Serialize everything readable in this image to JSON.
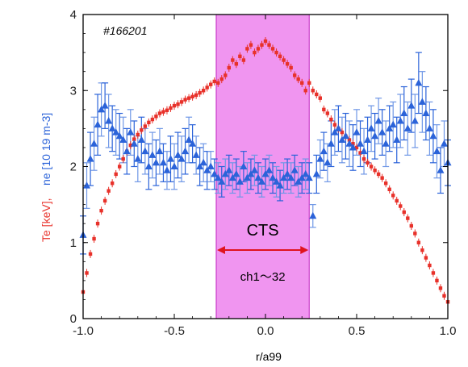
{
  "chart_data": {
    "type": "scatter",
    "shot_label": "#166201",
    "xlabel": "r/a99",
    "ylabel_te": "Te [keV],",
    "ylabel_ne": "ne [10 19 m-3]",
    "xlim": [
      -1.0,
      1.0
    ],
    "ylim": [
      0,
      4
    ],
    "x_ticks": [
      -1.0,
      -0.5,
      0.0,
      0.5,
      1.0
    ],
    "x_tick_labels": [
      "-1.0",
      "-0.5",
      "0.0",
      "0.5",
      "1.0"
    ],
    "y_ticks": [
      0,
      1,
      2,
      3,
      4
    ],
    "y_tick_labels": [
      "0",
      "1",
      "2",
      "3",
      "4"
    ],
    "grid": false,
    "colors": {
      "te": "#e8312a",
      "ne": "#2b63d9",
      "ne_err": "#6f97e6",
      "band": "#f095f0",
      "band_edge": "#c020c0",
      "arrow": "#e0141e"
    },
    "highlight_band": {
      "x_range": [
        -0.27,
        0.24
      ],
      "title": "CTS",
      "subtitle": "ch1～32"
    },
    "series": [
      {
        "name": "Te",
        "marker": "square",
        "x": [
          -1.0,
          -0.98,
          -0.96,
          -0.94,
          -0.92,
          -0.9,
          -0.88,
          -0.86,
          -0.84,
          -0.82,
          -0.8,
          -0.78,
          -0.76,
          -0.74,
          -0.72,
          -0.7,
          -0.68,
          -0.66,
          -0.64,
          -0.62,
          -0.6,
          -0.58,
          -0.56,
          -0.54,
          -0.52,
          -0.5,
          -0.48,
          -0.46,
          -0.44,
          -0.42,
          -0.4,
          -0.38,
          -0.36,
          -0.34,
          -0.32,
          -0.3,
          -0.28,
          -0.26,
          -0.24,
          -0.22,
          -0.2,
          -0.18,
          -0.16,
          -0.14,
          -0.12,
          -0.1,
          -0.08,
          -0.06,
          -0.04,
          -0.02,
          0.0,
          0.02,
          0.04,
          0.06,
          0.08,
          0.1,
          0.12,
          0.14,
          0.16,
          0.18,
          0.2,
          0.22,
          0.24,
          0.26,
          0.28,
          0.3,
          0.32,
          0.34,
          0.36,
          0.38,
          0.4,
          0.42,
          0.44,
          0.46,
          0.48,
          0.5,
          0.52,
          0.54,
          0.56,
          0.58,
          0.6,
          0.62,
          0.64,
          0.66,
          0.68,
          0.7,
          0.72,
          0.74,
          0.76,
          0.78,
          0.8,
          0.82,
          0.84,
          0.86,
          0.88,
          0.9,
          0.92,
          0.94,
          0.96,
          0.98,
          1.0
        ],
        "y": [
          0.35,
          0.6,
          0.85,
          1.05,
          1.25,
          1.42,
          1.55,
          1.68,
          1.78,
          1.9,
          2.0,
          2.1,
          2.2,
          2.28,
          2.36,
          2.42,
          2.48,
          2.53,
          2.58,
          2.62,
          2.66,
          2.7,
          2.72,
          2.74,
          2.77,
          2.8,
          2.82,
          2.85,
          2.88,
          2.9,
          2.92,
          2.94,
          2.97,
          3.0,
          3.04,
          3.08,
          3.12,
          3.1,
          3.15,
          3.2,
          3.3,
          3.4,
          3.35,
          3.45,
          3.4,
          3.55,
          3.6,
          3.5,
          3.55,
          3.6,
          3.65,
          3.6,
          3.55,
          3.5,
          3.45,
          3.4,
          3.35,
          3.3,
          3.2,
          3.15,
          3.1,
          3.0,
          3.1,
          3.0,
          2.95,
          2.9,
          2.75,
          2.7,
          2.62,
          2.55,
          2.5,
          2.45,
          2.4,
          2.35,
          2.3,
          2.25,
          2.18,
          2.1,
          2.05,
          2.0,
          1.95,
          1.9,
          1.85,
          1.78,
          1.7,
          1.62,
          1.55,
          1.48,
          1.4,
          1.32,
          1.22,
          1.12,
          1.0,
          0.9,
          0.8,
          0.7,
          0.6,
          0.5,
          0.4,
          0.3,
          0.22
        ]
      },
      {
        "name": "ne",
        "marker": "triangle",
        "x": [
          -1.0,
          -0.98,
          -0.96,
          -0.94,
          -0.92,
          -0.9,
          -0.88,
          -0.86,
          -0.84,
          -0.82,
          -0.8,
          -0.78,
          -0.76,
          -0.74,
          -0.72,
          -0.7,
          -0.68,
          -0.66,
          -0.64,
          -0.62,
          -0.6,
          -0.58,
          -0.56,
          -0.54,
          -0.52,
          -0.5,
          -0.48,
          -0.46,
          -0.44,
          -0.42,
          -0.4,
          -0.38,
          -0.36,
          -0.34,
          -0.32,
          -0.3,
          -0.28,
          -0.26,
          -0.24,
          -0.22,
          -0.2,
          -0.18,
          -0.16,
          -0.14,
          -0.12,
          -0.1,
          -0.08,
          -0.06,
          -0.04,
          -0.02,
          0.0,
          0.02,
          0.04,
          0.06,
          0.08,
          0.1,
          0.12,
          0.14,
          0.16,
          0.18,
          0.2,
          0.22,
          0.24,
          0.26,
          0.28,
          0.3,
          0.32,
          0.34,
          0.36,
          0.38,
          0.4,
          0.42,
          0.44,
          0.46,
          0.48,
          0.5,
          0.52,
          0.54,
          0.56,
          0.58,
          0.6,
          0.62,
          0.64,
          0.66,
          0.68,
          0.7,
          0.72,
          0.74,
          0.76,
          0.78,
          0.8,
          0.82,
          0.84,
          0.86,
          0.88,
          0.9,
          0.92,
          0.94,
          0.96,
          0.98,
          1.0
        ],
        "y": [
          1.1,
          1.75,
          2.1,
          2.3,
          2.55,
          2.75,
          2.8,
          2.6,
          2.5,
          2.45,
          2.4,
          2.35,
          2.2,
          2.45,
          2.3,
          2.1,
          2.35,
          2.2,
          2.0,
          2.15,
          2.05,
          2.2,
          2.05,
          1.95,
          2.1,
          2.0,
          2.15,
          2.1,
          2.2,
          2.35,
          2.3,
          2.15,
          2.0,
          2.05,
          1.95,
          2.0,
          1.9,
          1.85,
          1.8,
          1.9,
          1.95,
          1.85,
          1.9,
          1.8,
          2.0,
          1.85,
          1.9,
          1.95,
          1.85,
          1.8,
          1.9,
          1.95,
          1.85,
          1.8,
          1.75,
          1.85,
          1.9,
          1.85,
          1.95,
          1.8,
          1.85,
          1.9,
          1.85,
          1.35,
          1.9,
          2.1,
          2.2,
          2.05,
          2.3,
          2.45,
          2.5,
          2.35,
          2.4,
          2.3,
          2.25,
          2.45,
          2.3,
          2.2,
          2.35,
          2.5,
          2.4,
          2.6,
          2.45,
          2.3,
          2.5,
          2.55,
          2.35,
          2.6,
          2.7,
          2.5,
          2.8,
          2.6,
          3.1,
          2.85,
          2.7,
          2.5,
          2.4,
          2.2,
          1.95,
          2.3,
          2.05
        ],
        "err": [
          0.25,
          0.3,
          0.35,
          0.35,
          0.4,
          0.35,
          0.3,
          0.35,
          0.3,
          0.3,
          0.3,
          0.3,
          0.3,
          0.3,
          0.3,
          0.3,
          0.3,
          0.3,
          0.3,
          0.3,
          0.3,
          0.3,
          0.25,
          0.25,
          0.3,
          0.3,
          0.3,
          0.3,
          0.3,
          0.3,
          0.25,
          0.25,
          0.25,
          0.25,
          0.25,
          0.2,
          0.2,
          0.2,
          0.2,
          0.2,
          0.2,
          0.2,
          0.2,
          0.2,
          0.2,
          0.2,
          0.2,
          0.2,
          0.2,
          0.2,
          0.2,
          0.2,
          0.2,
          0.2,
          0.2,
          0.2,
          0.2,
          0.2,
          0.2,
          0.2,
          0.2,
          0.2,
          0.2,
          0.15,
          0.25,
          0.25,
          0.25,
          0.25,
          0.3,
          0.3,
          0.3,
          0.3,
          0.3,
          0.3,
          0.3,
          0.3,
          0.3,
          0.3,
          0.3,
          0.3,
          0.3,
          0.3,
          0.3,
          0.3,
          0.3,
          0.3,
          0.3,
          0.35,
          0.35,
          0.35,
          0.35,
          0.35,
          0.4,
          0.4,
          0.35,
          0.35,
          0.35,
          0.35,
          0.3,
          0.3,
          0.3
        ]
      }
    ]
  }
}
